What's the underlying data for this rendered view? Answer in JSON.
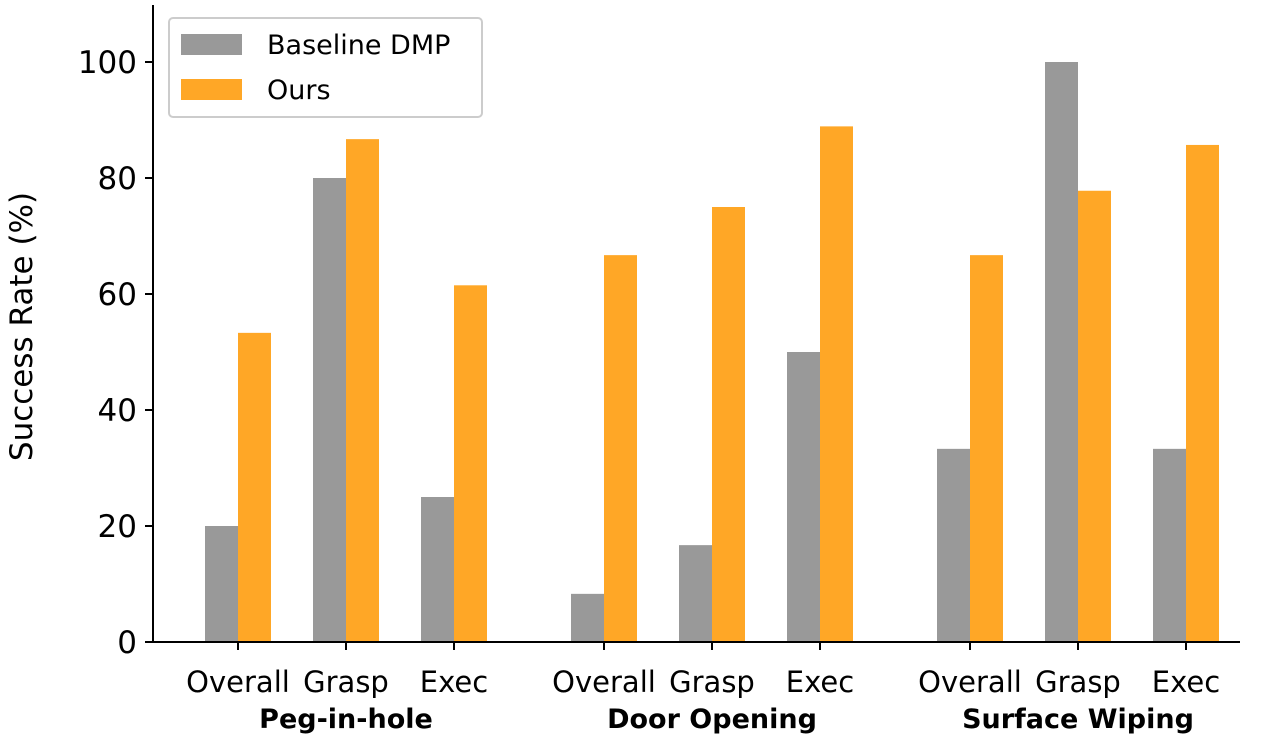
{
  "chart_data": {
    "type": "bar",
    "ylabel": "Success Rate (%)",
    "ylim": [
      0,
      110
    ],
    "yticks": [
      0,
      20,
      40,
      60,
      80,
      100
    ],
    "grid": false,
    "legend_position": "top-left",
    "groups": [
      {
        "label": "Peg-in-hole",
        "categories": [
          "Overall",
          "Grasp",
          "Exec"
        ]
      },
      {
        "label": "Door Opening",
        "categories": [
          "Overall",
          "Grasp",
          "Exec"
        ]
      },
      {
        "label": "Surface Wiping",
        "categories": [
          "Overall",
          "Grasp",
          "Exec"
        ]
      }
    ],
    "series": [
      {
        "name": "Baseline DMP",
        "color": "#999999",
        "values": [
          20,
          80,
          25,
          8.3,
          16.7,
          50,
          33.3,
          100,
          33.3
        ]
      },
      {
        "name": "Ours",
        "color": "#ffa726",
        "values": [
          53.3,
          86.7,
          61.5,
          66.7,
          75,
          88.9,
          66.7,
          77.8,
          85.7
        ]
      }
    ]
  }
}
